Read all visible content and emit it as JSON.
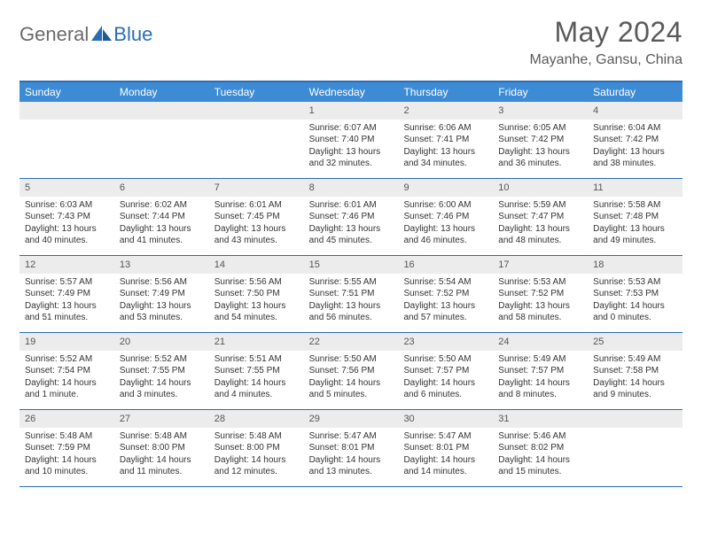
{
  "brand": {
    "text1": "General",
    "text2": "Blue"
  },
  "title": "May 2024",
  "location": "Mayanhe, Gansu, China",
  "colors": {
    "header_bg": "#3d8bd4",
    "border": "#2a6db5",
    "daynum_bg": "#ececec",
    "title_color": "#5a5a5a",
    "logo_gray": "#6a6a6a",
    "logo_blue": "#2a6db5"
  },
  "day_names": [
    "Sunday",
    "Monday",
    "Tuesday",
    "Wednesday",
    "Thursday",
    "Friday",
    "Saturday"
  ],
  "weeks": [
    [
      {
        "n": "",
        "sr": "",
        "ss": "",
        "dl": ""
      },
      {
        "n": "",
        "sr": "",
        "ss": "",
        "dl": ""
      },
      {
        "n": "",
        "sr": "",
        "ss": "",
        "dl": ""
      },
      {
        "n": "1",
        "sr": "Sunrise: 6:07 AM",
        "ss": "Sunset: 7:40 PM",
        "dl": "Daylight: 13 hours and 32 minutes."
      },
      {
        "n": "2",
        "sr": "Sunrise: 6:06 AM",
        "ss": "Sunset: 7:41 PM",
        "dl": "Daylight: 13 hours and 34 minutes."
      },
      {
        "n": "3",
        "sr": "Sunrise: 6:05 AM",
        "ss": "Sunset: 7:42 PM",
        "dl": "Daylight: 13 hours and 36 minutes."
      },
      {
        "n": "4",
        "sr": "Sunrise: 6:04 AM",
        "ss": "Sunset: 7:42 PM",
        "dl": "Daylight: 13 hours and 38 minutes."
      }
    ],
    [
      {
        "n": "5",
        "sr": "Sunrise: 6:03 AM",
        "ss": "Sunset: 7:43 PM",
        "dl": "Daylight: 13 hours and 40 minutes."
      },
      {
        "n": "6",
        "sr": "Sunrise: 6:02 AM",
        "ss": "Sunset: 7:44 PM",
        "dl": "Daylight: 13 hours and 41 minutes."
      },
      {
        "n": "7",
        "sr": "Sunrise: 6:01 AM",
        "ss": "Sunset: 7:45 PM",
        "dl": "Daylight: 13 hours and 43 minutes."
      },
      {
        "n": "8",
        "sr": "Sunrise: 6:01 AM",
        "ss": "Sunset: 7:46 PM",
        "dl": "Daylight: 13 hours and 45 minutes."
      },
      {
        "n": "9",
        "sr": "Sunrise: 6:00 AM",
        "ss": "Sunset: 7:46 PM",
        "dl": "Daylight: 13 hours and 46 minutes."
      },
      {
        "n": "10",
        "sr": "Sunrise: 5:59 AM",
        "ss": "Sunset: 7:47 PM",
        "dl": "Daylight: 13 hours and 48 minutes."
      },
      {
        "n": "11",
        "sr": "Sunrise: 5:58 AM",
        "ss": "Sunset: 7:48 PM",
        "dl": "Daylight: 13 hours and 49 minutes."
      }
    ],
    [
      {
        "n": "12",
        "sr": "Sunrise: 5:57 AM",
        "ss": "Sunset: 7:49 PM",
        "dl": "Daylight: 13 hours and 51 minutes."
      },
      {
        "n": "13",
        "sr": "Sunrise: 5:56 AM",
        "ss": "Sunset: 7:49 PM",
        "dl": "Daylight: 13 hours and 53 minutes."
      },
      {
        "n": "14",
        "sr": "Sunrise: 5:56 AM",
        "ss": "Sunset: 7:50 PM",
        "dl": "Daylight: 13 hours and 54 minutes."
      },
      {
        "n": "15",
        "sr": "Sunrise: 5:55 AM",
        "ss": "Sunset: 7:51 PM",
        "dl": "Daylight: 13 hours and 56 minutes."
      },
      {
        "n": "16",
        "sr": "Sunrise: 5:54 AM",
        "ss": "Sunset: 7:52 PM",
        "dl": "Daylight: 13 hours and 57 minutes."
      },
      {
        "n": "17",
        "sr": "Sunrise: 5:53 AM",
        "ss": "Sunset: 7:52 PM",
        "dl": "Daylight: 13 hours and 58 minutes."
      },
      {
        "n": "18",
        "sr": "Sunrise: 5:53 AM",
        "ss": "Sunset: 7:53 PM",
        "dl": "Daylight: 14 hours and 0 minutes."
      }
    ],
    [
      {
        "n": "19",
        "sr": "Sunrise: 5:52 AM",
        "ss": "Sunset: 7:54 PM",
        "dl": "Daylight: 14 hours and 1 minute."
      },
      {
        "n": "20",
        "sr": "Sunrise: 5:52 AM",
        "ss": "Sunset: 7:55 PM",
        "dl": "Daylight: 14 hours and 3 minutes."
      },
      {
        "n": "21",
        "sr": "Sunrise: 5:51 AM",
        "ss": "Sunset: 7:55 PM",
        "dl": "Daylight: 14 hours and 4 minutes."
      },
      {
        "n": "22",
        "sr": "Sunrise: 5:50 AM",
        "ss": "Sunset: 7:56 PM",
        "dl": "Daylight: 14 hours and 5 minutes."
      },
      {
        "n": "23",
        "sr": "Sunrise: 5:50 AM",
        "ss": "Sunset: 7:57 PM",
        "dl": "Daylight: 14 hours and 6 minutes."
      },
      {
        "n": "24",
        "sr": "Sunrise: 5:49 AM",
        "ss": "Sunset: 7:57 PM",
        "dl": "Daylight: 14 hours and 8 minutes."
      },
      {
        "n": "25",
        "sr": "Sunrise: 5:49 AM",
        "ss": "Sunset: 7:58 PM",
        "dl": "Daylight: 14 hours and 9 minutes."
      }
    ],
    [
      {
        "n": "26",
        "sr": "Sunrise: 5:48 AM",
        "ss": "Sunset: 7:59 PM",
        "dl": "Daylight: 14 hours and 10 minutes."
      },
      {
        "n": "27",
        "sr": "Sunrise: 5:48 AM",
        "ss": "Sunset: 8:00 PM",
        "dl": "Daylight: 14 hours and 11 minutes."
      },
      {
        "n": "28",
        "sr": "Sunrise: 5:48 AM",
        "ss": "Sunset: 8:00 PM",
        "dl": "Daylight: 14 hours and 12 minutes."
      },
      {
        "n": "29",
        "sr": "Sunrise: 5:47 AM",
        "ss": "Sunset: 8:01 PM",
        "dl": "Daylight: 14 hours and 13 minutes."
      },
      {
        "n": "30",
        "sr": "Sunrise: 5:47 AM",
        "ss": "Sunset: 8:01 PM",
        "dl": "Daylight: 14 hours and 14 minutes."
      },
      {
        "n": "31",
        "sr": "Sunrise: 5:46 AM",
        "ss": "Sunset: 8:02 PM",
        "dl": "Daylight: 14 hours and 15 minutes."
      },
      {
        "n": "",
        "sr": "",
        "ss": "",
        "dl": ""
      }
    ]
  ]
}
